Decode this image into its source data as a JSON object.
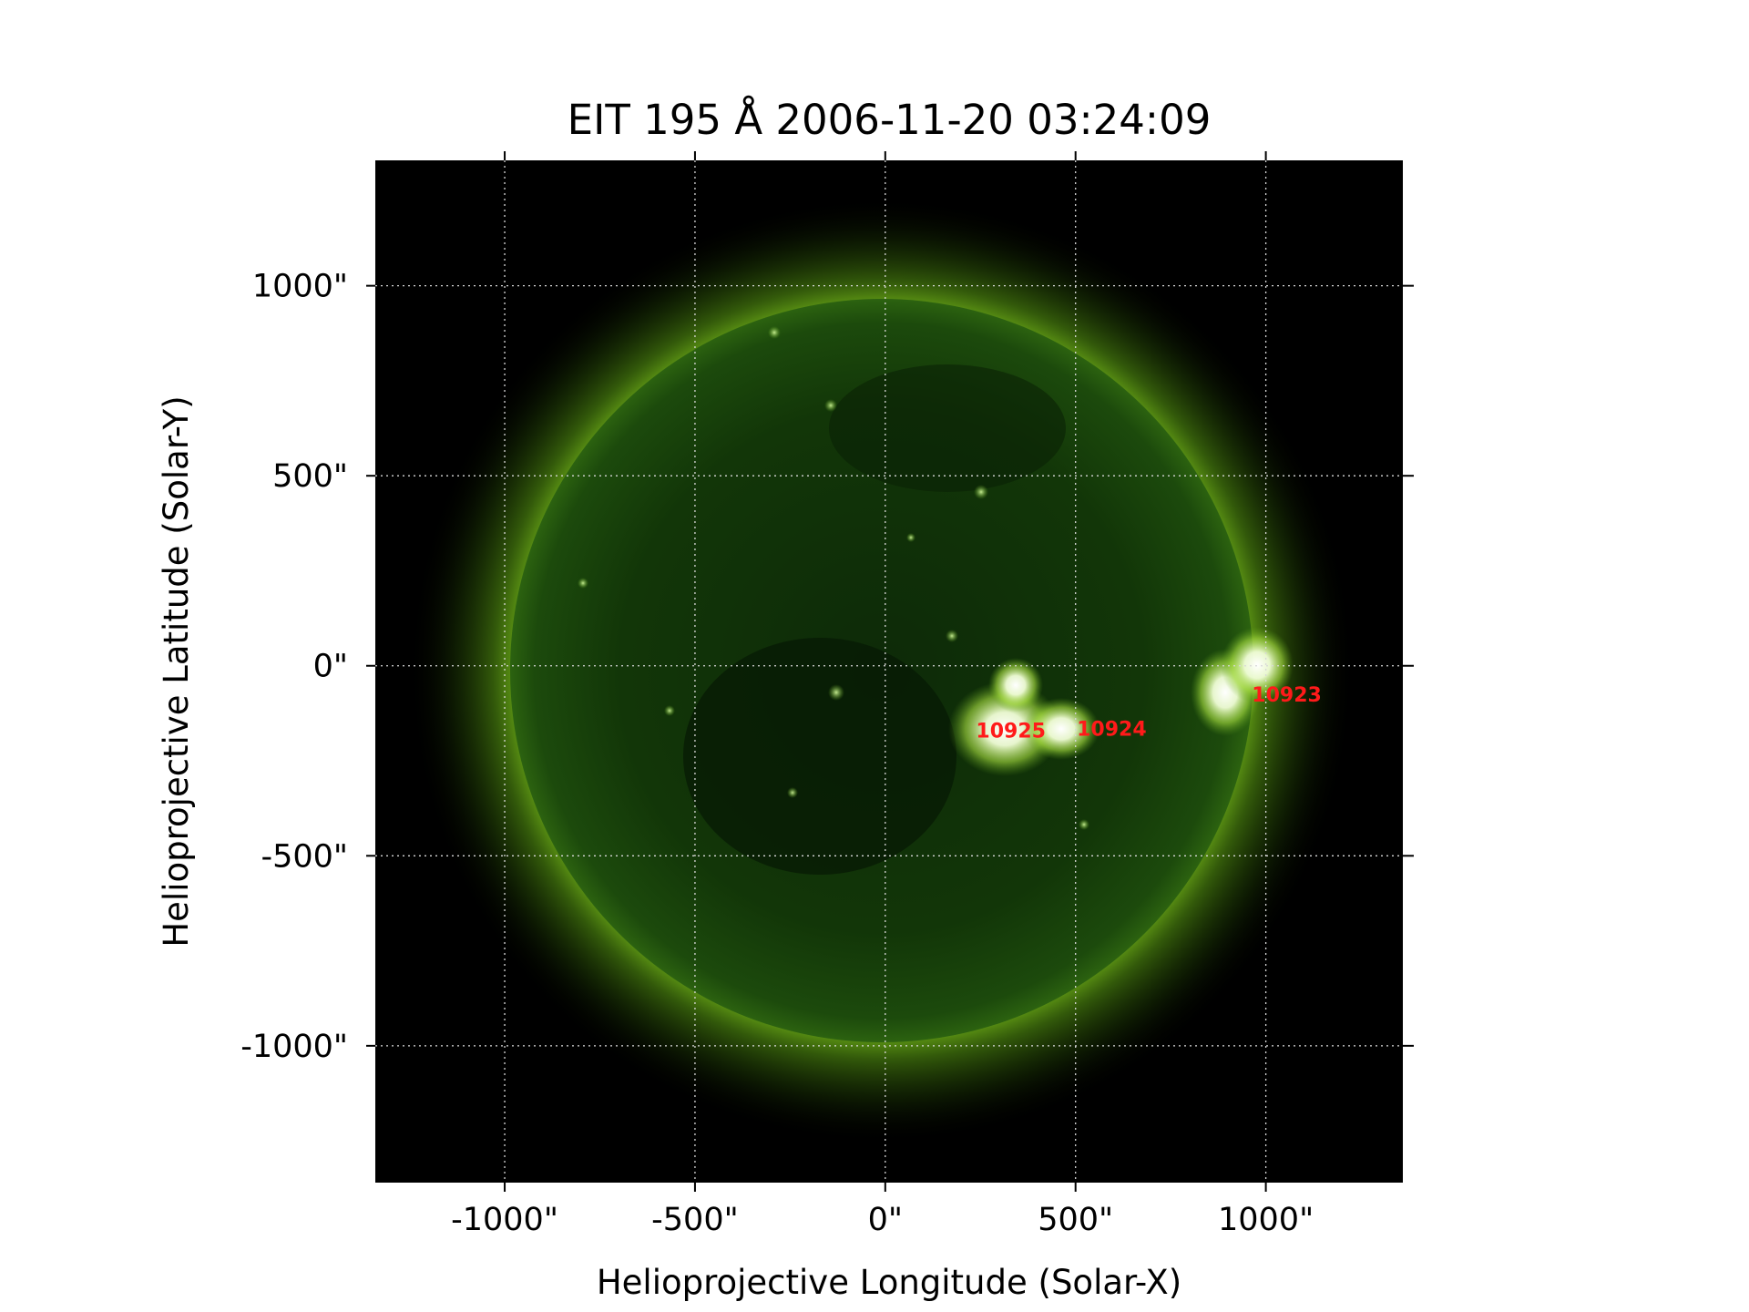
{
  "figure": {
    "title": "EIT 195 Å 2006-11-20 03:24:09",
    "xlabel": "Helioprojective Longitude (Solar-X)",
    "ylabel": "Helioprojective Latitude (Solar-Y)"
  },
  "axes": {
    "x_ticks": [
      {
        "value": -1000,
        "label": "-1000\""
      },
      {
        "value": -500,
        "label": "-500\""
      },
      {
        "value": 0,
        "label": "0\""
      },
      {
        "value": 500,
        "label": "500\""
      },
      {
        "value": 1000,
        "label": "1000\""
      }
    ],
    "y_ticks": [
      {
        "value": 1000,
        "label": "1000\""
      },
      {
        "value": 500,
        "label": "500\""
      },
      {
        "value": 0,
        "label": "0\""
      },
      {
        "value": -500,
        "label": "-500\""
      },
      {
        "value": -1000,
        "label": "-1000\""
      }
    ],
    "xlim": [
      -1340,
      1360
    ],
    "ylim": [
      -1360,
      1330
    ],
    "grid": true
  },
  "active_regions": [
    {
      "label": "10925",
      "x": 330,
      "y": -170
    },
    {
      "label": "10924",
      "x": 595,
      "y": -165
    },
    {
      "label": "10923",
      "x": 1055,
      "y": -75
    }
  ],
  "colors": {
    "annotation": "#ff1a1a",
    "disk": "#0f2e0a",
    "corona": "#5a9a10",
    "background": "#000000",
    "grid": "#d8d8d8"
  }
}
